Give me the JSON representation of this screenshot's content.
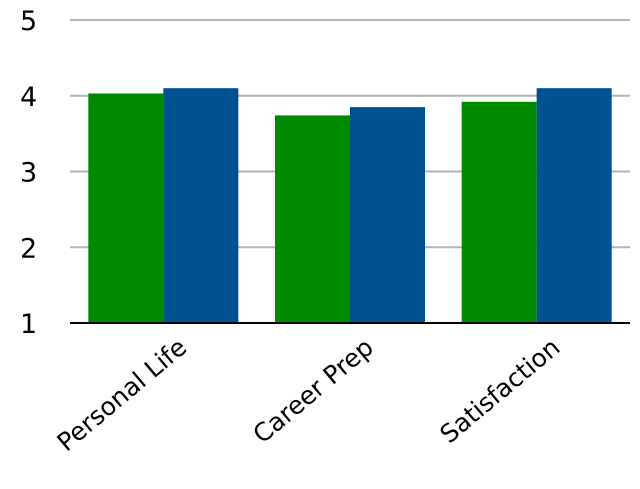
{
  "chart_data": {
    "type": "bar",
    "categories": [
      "Personal Life",
      "Career Prep",
      "Satisfaction"
    ],
    "series": [
      {
        "values": [
          4.03,
          3.74,
          3.92
        ],
        "color": "#008a00"
      },
      {
        "values": [
          4.1,
          3.85,
          4.1
        ],
        "color": "#005192"
      }
    ],
    "ylim": [
      1,
      5
    ],
    "yticks": [
      "1",
      "2",
      "3",
      "4",
      "5"
    ],
    "grid": true,
    "gridline_color": "#b3b3b3",
    "axis_color": "#000000"
  }
}
